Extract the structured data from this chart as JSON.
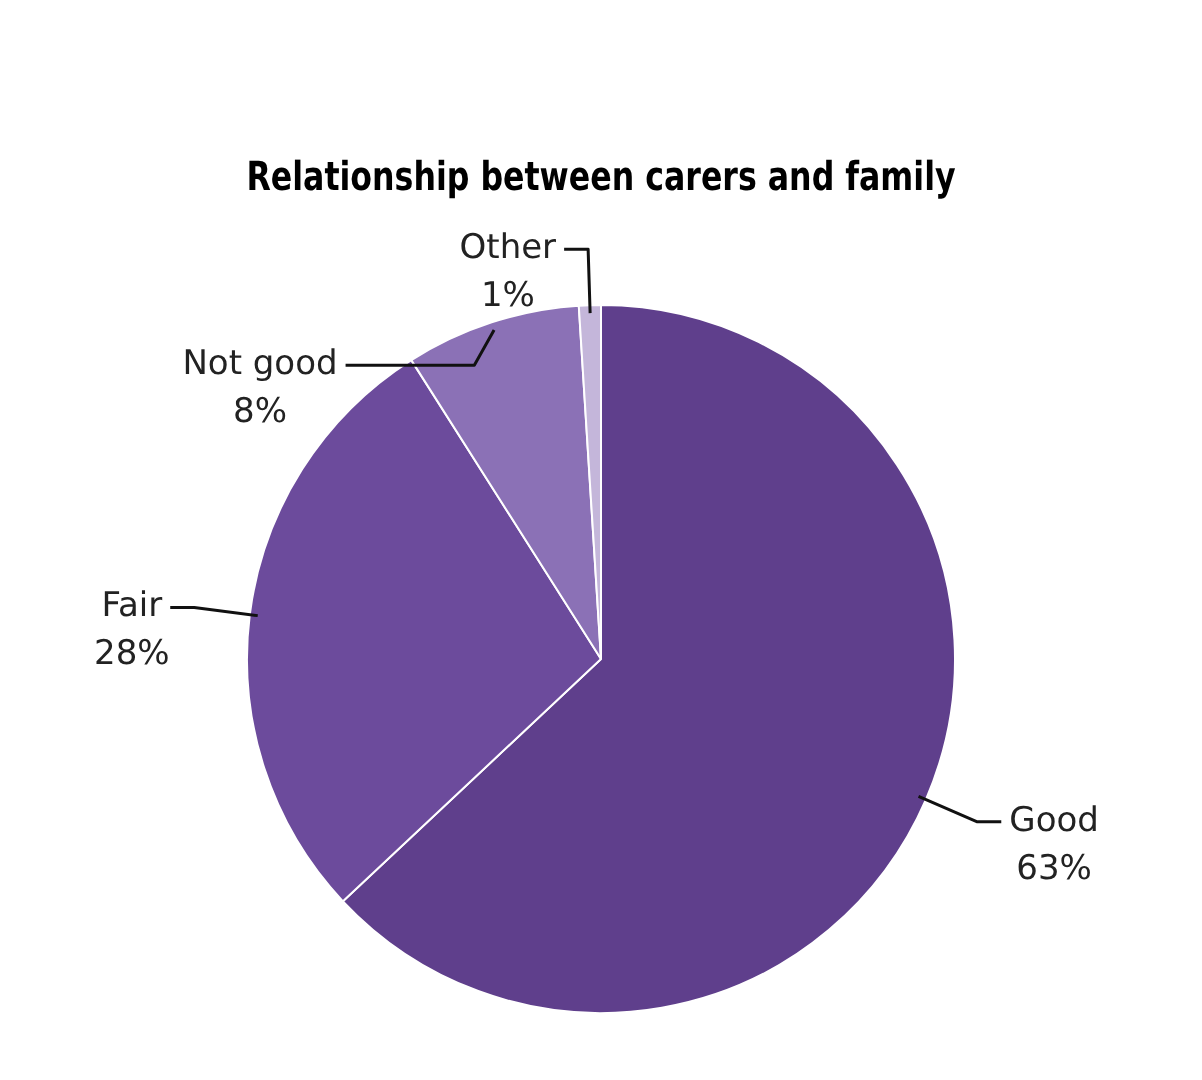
{
  "chart_data": {
    "type": "pie",
    "title": "Relationship between carers and family",
    "categories": [
      "Good",
      "Fair",
      "Not good",
      "Other"
    ],
    "values": [
      63,
      28,
      8,
      1
    ],
    "value_labels": [
      "63%",
      "28%",
      "8%",
      "1%"
    ],
    "colors": [
      "#5f3f8c",
      "#6c4b9c",
      "#8b71b6",
      "#c4b6da"
    ],
    "legend": false
  }
}
